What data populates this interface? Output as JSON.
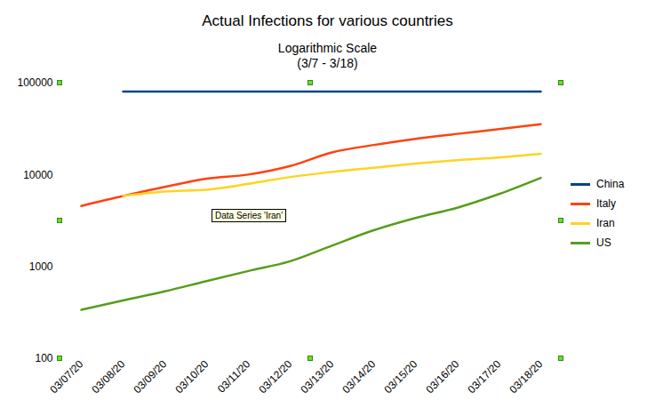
{
  "chart_data": {
    "type": "line",
    "title": "Actual Infections for various countries",
    "subtitle": "Logarithmic Scale\n(3/7 - 3/18)",
    "x": [
      "03/07/20",
      "03/08/20",
      "03/09/20",
      "03/10/20",
      "03/11/20",
      "03/12/20",
      "03/13/20",
      "03/14/20",
      "03/15/20",
      "03/16/20",
      "03/17/20",
      "03/18/20"
    ],
    "series": [
      {
        "name": "China",
        "color": "#004586",
        "values": [
          null,
          80700,
          80700,
          80750,
          80780,
          80800,
          80820,
          80850,
          80860,
          80880,
          80900,
          80930
        ]
      },
      {
        "name": "Italy",
        "color": "#ff420e",
        "values": [
          4600,
          5900,
          7400,
          9100,
          10100,
          12500,
          17600,
          21200,
          24700,
          28000,
          31500,
          35700
        ]
      },
      {
        "name": "Iran",
        "color": "#ffd320",
        "values": [
          null,
          5900,
          6600,
          6900,
          8000,
          9500,
          10800,
          12000,
          13300,
          14500,
          15500,
          17000
        ]
      },
      {
        "name": "US",
        "color": "#579d1c",
        "values": [
          340,
          430,
          540,
          700,
          900,
          1150,
          1700,
          2500,
          3400,
          4400,
          6200,
          9300
        ]
      }
    ],
    "ylim": [
      100,
      100000
    ],
    "yticks": [
      100,
      1000,
      10000,
      100000
    ],
    "log": "y",
    "grid": false,
    "legend": "right",
    "annotations": [
      "Data Series 'Iran'"
    ]
  }
}
